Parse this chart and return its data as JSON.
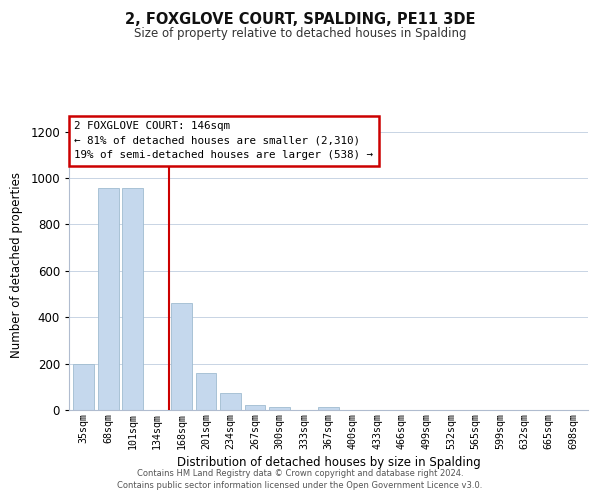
{
  "title": "2, FOXGLOVE COURT, SPALDING, PE11 3DE",
  "subtitle": "Size of property relative to detached houses in Spalding",
  "xlabel": "Distribution of detached houses by size in Spalding",
  "ylabel": "Number of detached properties",
  "bar_labels": [
    "35sqm",
    "68sqm",
    "101sqm",
    "134sqm",
    "168sqm",
    "201sqm",
    "234sqm",
    "267sqm",
    "300sqm",
    "333sqm",
    "367sqm",
    "400sqm",
    "433sqm",
    "466sqm",
    "499sqm",
    "532sqm",
    "565sqm",
    "599sqm",
    "632sqm",
    "665sqm",
    "698sqm"
  ],
  "bar_values": [
    200,
    955,
    955,
    0,
    460,
    160,
    72,
    22,
    15,
    0,
    12,
    0,
    0,
    0,
    0,
    0,
    0,
    0,
    0,
    0,
    0
  ],
  "bar_color": "#c5d8ed",
  "bar_edge_color": "#a0bcd0",
  "property_line_x": 3.5,
  "property_line_color": "#cc0000",
  "ylim": [
    0,
    1250
  ],
  "yticks": [
    0,
    200,
    400,
    600,
    800,
    1000,
    1200
  ],
  "annotation_title": "2 FOXGLOVE COURT: 146sqm",
  "annotation_line1": "← 81% of detached houses are smaller (2,310)",
  "annotation_line2": "19% of semi-detached houses are larger (538) →",
  "annotation_box_color": "#ffffff",
  "annotation_box_edge": "#cc0000",
  "footer1": "Contains HM Land Registry data © Crown copyright and database right 2024.",
  "footer2": "Contains public sector information licensed under the Open Government Licence v3.0.",
  "background_color": "#ffffff",
  "grid_color": "#c8d4e4"
}
